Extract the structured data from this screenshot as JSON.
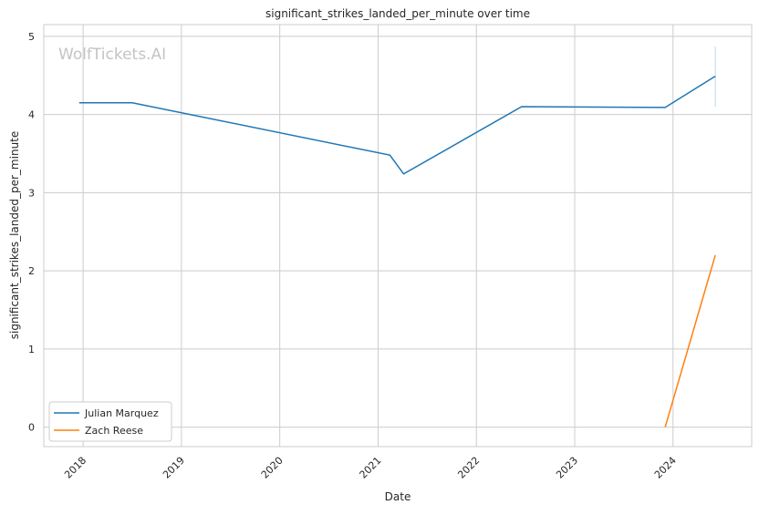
{
  "chart_data": {
    "type": "line",
    "title": "significant_strikes_landed_per_minute over time",
    "xlabel": "Date",
    "ylabel": "significant_strikes_landed_per_minute",
    "watermark": "WolfTickets.AI",
    "xlim": [
      2017.6,
      2024.8
    ],
    "ylim": [
      -0.25,
      5.15
    ],
    "xticks": [
      2018,
      2019,
      2020,
      2021,
      2022,
      2023,
      2024
    ],
    "xtick_labels": [
      "2018",
      "2019",
      "2020",
      "2021",
      "2022",
      "2023",
      "2024"
    ],
    "yticks": [
      0,
      1,
      2,
      3,
      4,
      5
    ],
    "ytick_labels": [
      "0",
      "1",
      "2",
      "3",
      "4",
      "5"
    ],
    "grid": true,
    "legend_position": "bottom-left",
    "series": [
      {
        "name": "Julian Marquez",
        "color": "#1f77b4",
        "x": [
          2017.96,
          2018.5,
          2021.12,
          2021.26,
          2022.46,
          2023.92,
          2024.43
        ],
        "y": [
          4.15,
          4.15,
          3.48,
          3.24,
          4.1,
          4.09,
          4.49
        ],
        "error_bar": {
          "x": 2024.43,
          "low": 4.1,
          "high": 4.87
        }
      },
      {
        "name": "Zach Reese",
        "color": "#ff7f0e",
        "x": [
          2023.92,
          2024.43
        ],
        "y": [
          0.0,
          2.2
        ]
      }
    ]
  }
}
